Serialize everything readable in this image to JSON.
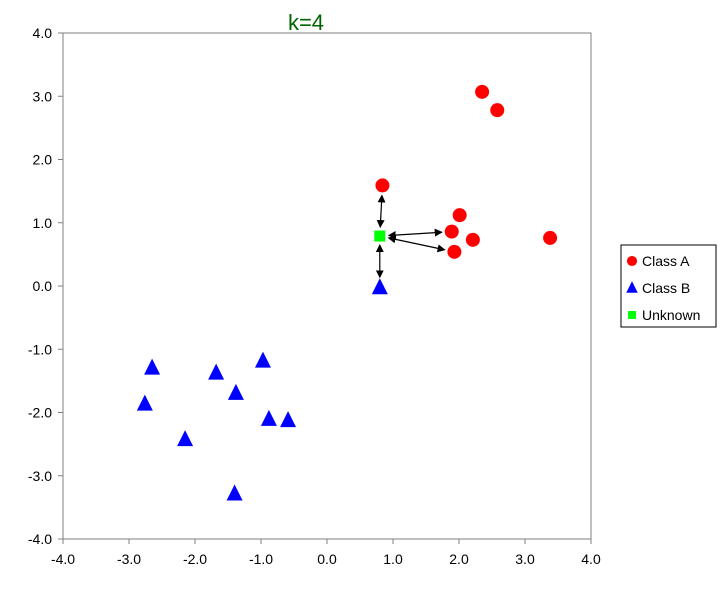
{
  "chart_data": {
    "type": "scatter",
    "title": "k=4",
    "xlim": [
      -4.0,
      4.0
    ],
    "ylim": [
      -4.0,
      4.0
    ],
    "x_ticks": [
      "-4.0",
      "-3.0",
      "-2.0",
      "-1.0",
      "0.0",
      "1.0",
      "2.0",
      "3.0",
      "4.0"
    ],
    "y_ticks": [
      "4.0",
      "3.0",
      "2.0",
      "1.0",
      "0.0",
      "-1.0",
      "-2.0",
      "-3.0",
      "-4.0"
    ],
    "grid": false,
    "legend_position": "right",
    "series": [
      {
        "name": "Class A",
        "marker": "circle",
        "color": "#ff0000",
        "points": [
          {
            "x": 2.35,
            "y": 3.07
          },
          {
            "x": 2.58,
            "y": 2.78
          },
          {
            "x": 0.84,
            "y": 1.59
          },
          {
            "x": 2.01,
            "y": 1.12
          },
          {
            "x": 1.89,
            "y": 0.86
          },
          {
            "x": 2.21,
            "y": 0.73
          },
          {
            "x": 1.93,
            "y": 0.54
          },
          {
            "x": 3.38,
            "y": 0.76
          }
        ]
      },
      {
        "name": "Class B",
        "marker": "triangle",
        "color": "#0000ff",
        "points": [
          {
            "x": 0.8,
            "y": -0.02
          },
          {
            "x": -2.65,
            "y": -1.29
          },
          {
            "x": -1.68,
            "y": -1.37
          },
          {
            "x": -0.97,
            "y": -1.18
          },
          {
            "x": -1.38,
            "y": -1.69
          },
          {
            "x": -2.76,
            "y": -1.86
          },
          {
            "x": -0.88,
            "y": -2.1
          },
          {
            "x": -0.59,
            "y": -2.12
          },
          {
            "x": -2.15,
            "y": -2.42
          },
          {
            "x": -1.4,
            "y": -3.28
          }
        ]
      },
      {
        "name": "Unknown",
        "marker": "square",
        "color": "#00ff00",
        "points": [
          {
            "x": 0.8,
            "y": 0.79
          }
        ]
      }
    ],
    "neighbor_arrows": [
      {
        "to": {
          "x": 0.84,
          "y": 1.59
        }
      },
      {
        "to": {
          "x": 1.89,
          "y": 0.86
        }
      },
      {
        "to": {
          "x": 1.93,
          "y": 0.54
        }
      },
      {
        "to": {
          "x": 0.8,
          "y": -0.02
        }
      }
    ]
  },
  "colors": {
    "title": "#006400",
    "axis": "#808080"
  }
}
